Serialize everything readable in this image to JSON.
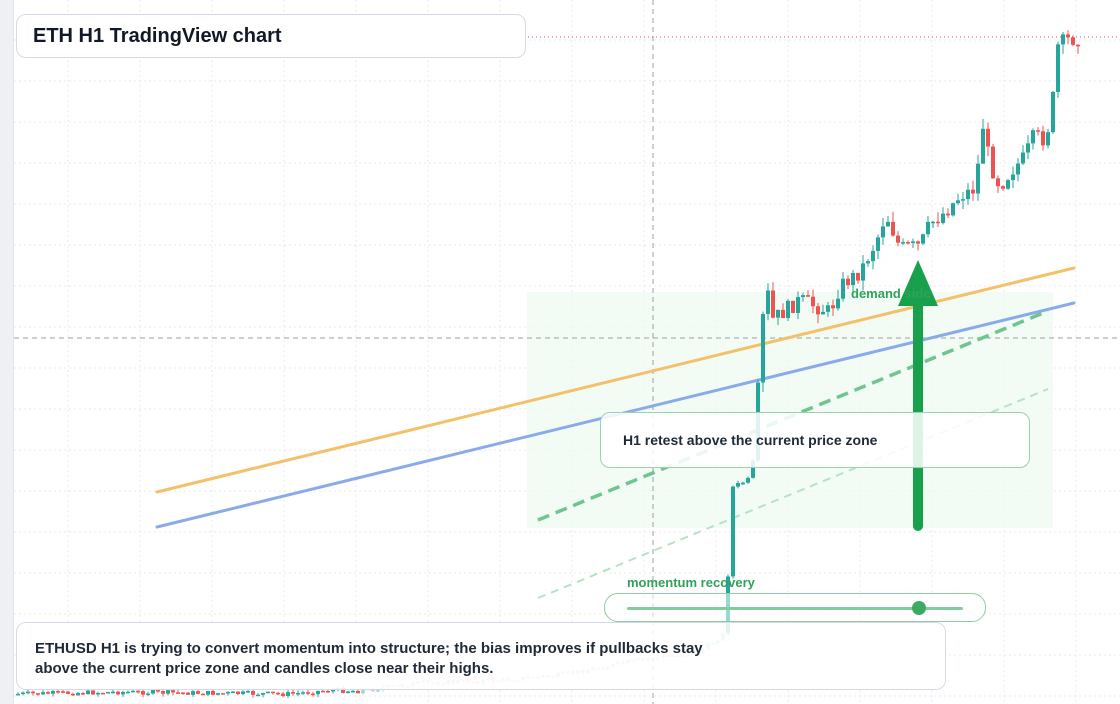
{
  "header": {
    "title": "ETH H1 TradingView chart"
  },
  "annotations": {
    "demand_label": "demand side",
    "retest_label": "H1 retest above the current price zone",
    "momentum_label": "momentum recovery",
    "momentum_level": 0.87
  },
  "summary": {
    "line1": "ETHUSD H1 is trying to convert momentum into structure; the bias improves if pullbacks stay",
    "line2": "above the current price zone and candles close near their highs."
  },
  "colors": {
    "bull": "#26a69a",
    "bear": "#ef5350",
    "accent_green": "#2ea35a",
    "ma_fast": "#f4c06a",
    "ma_slow": "#8aabeb"
  },
  "icons": {
    "arrow": "arrow-up-icon"
  }
}
